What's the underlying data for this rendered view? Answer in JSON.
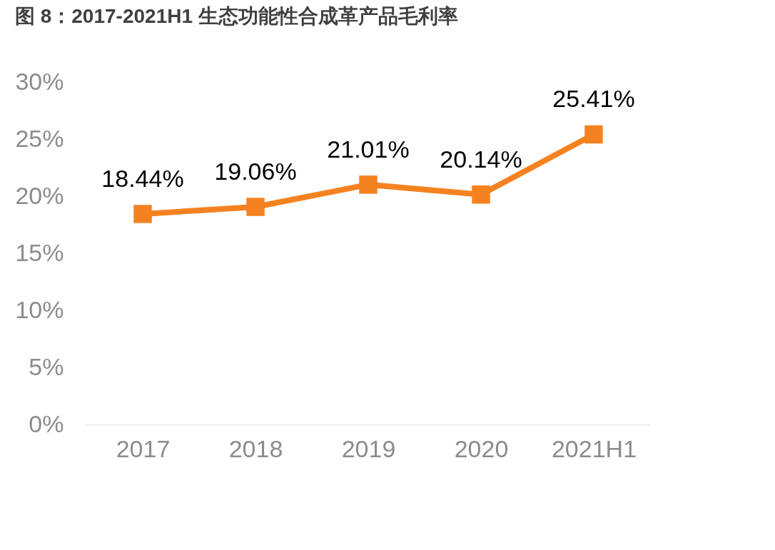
{
  "chart_data": {
    "type": "line",
    "title": "图 8：2017-2021H1 生态功能性合成革产品毛利率",
    "categories": [
      "2017",
      "2018",
      "2019",
      "2020",
      "2021H1"
    ],
    "series": [
      {
        "color": "#f58220",
        "values": [
          18.44,
          19.06,
          21.01,
          20.14,
          25.41
        ],
        "value_labels": [
          "18.44%",
          "19.06%",
          "21.01%",
          "20.14%",
          "25.41%"
        ]
      }
    ],
    "ylim": [
      0,
      30
    ],
    "yticks": [
      {
        "value": 0,
        "label": "0%"
      },
      {
        "value": 5,
        "label": "5%"
      },
      {
        "value": 10,
        "label": "10%"
      },
      {
        "value": 15,
        "label": "15%"
      },
      {
        "value": 20,
        "label": "20%"
      },
      {
        "value": 25,
        "label": "25%"
      },
      {
        "value": 30,
        "label": "30%"
      }
    ],
    "grid": false,
    "marker": "square",
    "line_style": "solid"
  }
}
